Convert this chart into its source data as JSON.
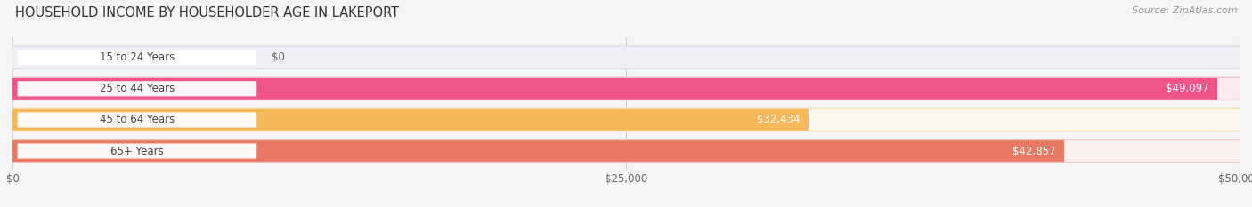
{
  "title": "HOUSEHOLD INCOME BY HOUSEHOLDER AGE IN LAKEPORT",
  "source": "Source: ZipAtlas.com",
  "categories": [
    "15 to 24 Years",
    "25 to 44 Years",
    "45 to 64 Years",
    "65+ Years"
  ],
  "values": [
    0,
    49097,
    32434,
    42857
  ],
  "labels": [
    "$0",
    "$49,097",
    "$32,434",
    "$42,857"
  ],
  "bar_colors": [
    "#a8a8d8",
    "#f0558a",
    "#f5b85a",
    "#e87a65"
  ],
  "bar_bg_colors": [
    "#efeff5",
    "#fceaf2",
    "#fef7ed",
    "#fdf1ee"
  ],
  "bar_shadow_colors": [
    "#dddde8",
    "#f2c0d5",
    "#f5ddb0",
    "#f0c4b8"
  ],
  "max_value": 50000,
  "xticks": [
    0,
    25000,
    50000
  ],
  "xtick_labels": [
    "$0",
    "$25,000",
    "$50,000"
  ],
  "title_fontsize": 10.5,
  "source_fontsize": 8,
  "label_fontsize": 8.5,
  "tick_fontsize": 8.5,
  "background_color": "#f5f5f5",
  "pill_text_color": "#444444",
  "grid_color": "#d0d0d0",
  "value_label_color_inside": "#ffffff",
  "value_label_color_outside": "#666666"
}
